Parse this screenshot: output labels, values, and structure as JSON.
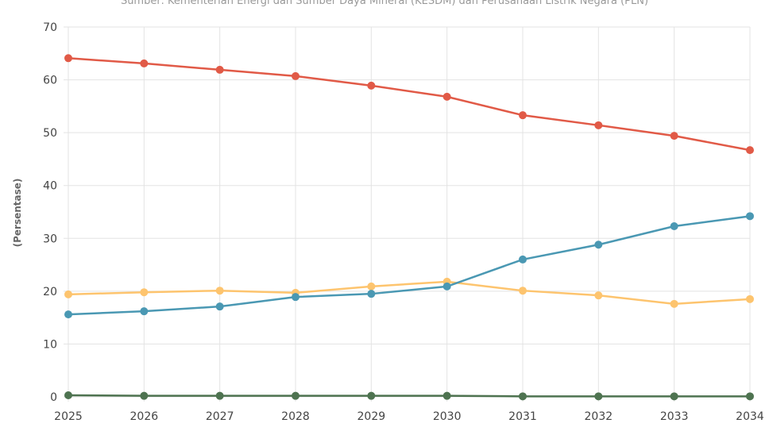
{
  "chart_data": {
    "type": "line",
    "title": "",
    "subtitle": "Sumber: Kementerian Energi dan Sumber Daya Mineral (KESDM) dan Perusahaan Listrik Negara (PLN)",
    "xlabel": "",
    "ylabel": "(Persentase)",
    "ylim": [
      0,
      70
    ],
    "yticks": [
      "0",
      "10",
      "20",
      "30",
      "40",
      "50",
      "60",
      "70"
    ],
    "categories": [
      "2025",
      "2026",
      "2027",
      "2028",
      "2029",
      "2030",
      "2031",
      "2032",
      "2033",
      "2034"
    ],
    "grid": true,
    "series": [
      {
        "color": "#e15a47",
        "values": [
          64.1,
          63.1,
          61.9,
          60.7,
          58.9,
          56.8,
          53.3,
          51.4,
          49.4,
          46.7
        ]
      },
      {
        "color": "#fdc46e",
        "values": [
          19.4,
          19.8,
          20.1,
          19.7,
          20.9,
          21.8,
          20.1,
          19.2,
          17.6,
          18.5
        ]
      },
      {
        "color": "#4a98b3",
        "values": [
          15.6,
          16.2,
          17.1,
          18.9,
          19.5,
          20.9,
          26.0,
          28.8,
          32.3,
          34.2
        ]
      },
      {
        "color": "#4e7350",
        "values": [
          0.3,
          0.2,
          0.2,
          0.2,
          0.2,
          0.2,
          0.1,
          0.1,
          0.1,
          0.1
        ]
      }
    ]
  }
}
